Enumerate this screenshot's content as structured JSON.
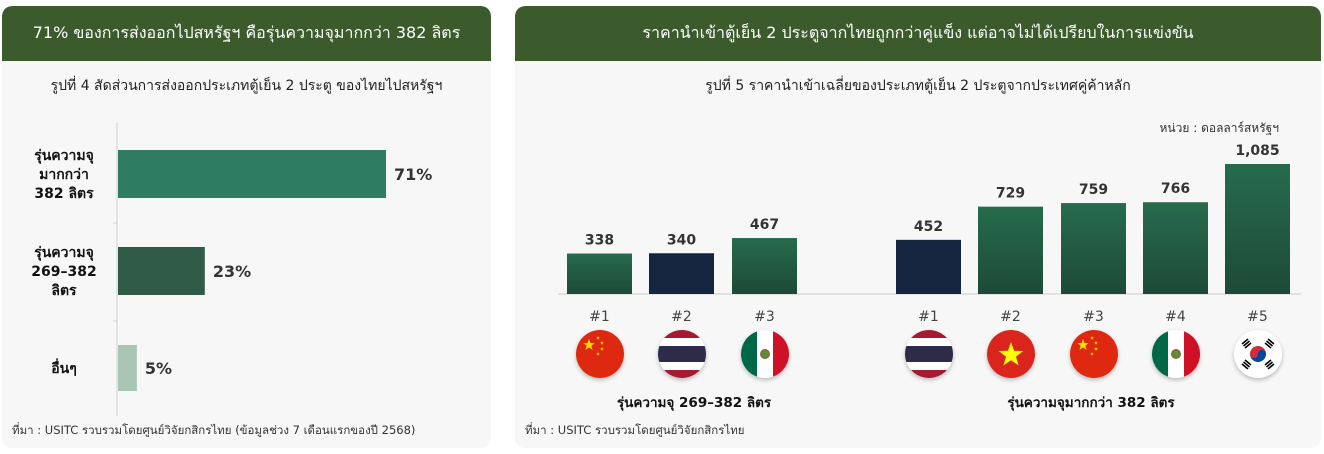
{
  "left_panel": {
    "header": "71% ของการส่งออกไปสหรัฐฯ คือรุ่นความจุมากกว่า 382 ลิตร",
    "subtitle": "รูปที่ 4 สัดส่วนการส่งออกประเภทตู้เย็น 2 ประตู ของไทยไปสหรัฐฯ",
    "source": "ที่มา : USITC รวบรวมโดยศูนย์วิจัยกสิกรไทย (ข้อมูลช่วง 7 เดือนแรกของปี 2568)"
  },
  "right_panel": {
    "header": "ราคานำเข้าตู้เย็น 2 ประตูจากไทยถูกกว่าคู่แข็ง แต่อาจไม่ได้เปรียบในการแข่งขัน",
    "subtitle": "รูปที่ 5 ราคานำเข้าเฉลี่ยของประเภทตู้เย็น 2 ประตูจากประเทศคู่ค้าหลัก",
    "unit": "หน่วย : ดอลลาร์สหรัฐฯ",
    "source": "ที่มา : USITC รวบรวมโดยศูนย์วิจัยกสิกรไทย",
    "group1_label": "รุ่นความจุ 269–382 ลิตร",
    "group2_label": "รุ่นความจุมากกว่า 382 ลิตร"
  },
  "colors": {
    "header_green": "#3b5b2c",
    "bar_green": "#2e7d62",
    "bar_dark_green": "#2f5a46",
    "bar_light_green": "#a9c6b4",
    "bar_navy": "#15243f",
    "bar_gradient_top": "#276b4c",
    "bar_gradient_bottom": "#1d4a37"
  },
  "chart_data": [
    {
      "type": "bar",
      "orientation": "horizontal",
      "categories": [
        [
          "รุ่นความจุ",
          "มากกว่า",
          "382 ลิตร"
        ],
        [
          "รุ่นความจุ",
          "269–382",
          "ลิตร"
        ],
        [
          "อื่นๆ"
        ]
      ],
      "values": [
        71,
        23,
        5
      ],
      "value_labels": [
        "71%",
        "23%",
        "5%"
      ],
      "bar_colors": [
        "#2e7d62",
        "#2f5a46",
        "#a9c6b4"
      ],
      "xlim": [
        0,
        100
      ]
    },
    {
      "type": "bar",
      "groups": [
        {
          "name": "รุ่นความจุ 269–382 ลิตร",
          "categories": [
            "#1",
            "#2",
            "#3"
          ],
          "countries": [
            "china",
            "thailand",
            "mexico"
          ],
          "values": [
            338,
            340,
            467
          ],
          "value_labels": [
            "338",
            "340",
            "467"
          ]
        },
        {
          "name": "รุ่นความจุมากกว่า 382 ลิตร",
          "categories": [
            "#1",
            "#2",
            "#3",
            "#4",
            "#5"
          ],
          "countries": [
            "thailand",
            "vietnam",
            "china",
            "mexico",
            "south-korea"
          ],
          "values": [
            452,
            729,
            759,
            766,
            1085
          ],
          "value_labels": [
            "452",
            "729",
            "759",
            "766",
            "1,085"
          ]
        }
      ],
      "highlight_country": "thailand",
      "ylim": [
        0,
        1100
      ]
    }
  ]
}
